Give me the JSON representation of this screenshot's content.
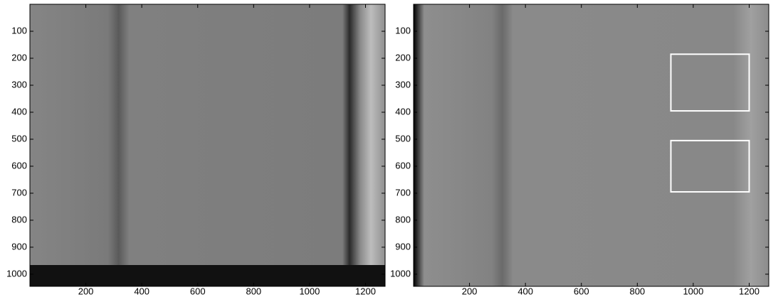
{
  "chart_data": [
    {
      "type": "image",
      "xlim": [
        0,
        1270
      ],
      "ylim": [
        0,
        1045
      ],
      "xticks": [
        200,
        400,
        600,
        800,
        1000,
        1200
      ],
      "yticks": [
        100,
        200,
        300,
        400,
        500,
        600,
        700,
        800,
        900,
        1000
      ]
    },
    {
      "type": "image",
      "xlim": [
        0,
        1270
      ],
      "ylim": [
        0,
        1045
      ],
      "xticks": [
        200,
        400,
        600,
        800,
        1000,
        1200
      ],
      "yticks": [
        100,
        200,
        300,
        400,
        500,
        600,
        700,
        800,
        900,
        1000
      ],
      "boxes": [
        {
          "x": [
            920,
            1200
          ],
          "y": [
            185,
            395
          ]
        },
        {
          "x": [
            920,
            1200
          ],
          "y": [
            505,
            695
          ]
        }
      ]
    }
  ]
}
